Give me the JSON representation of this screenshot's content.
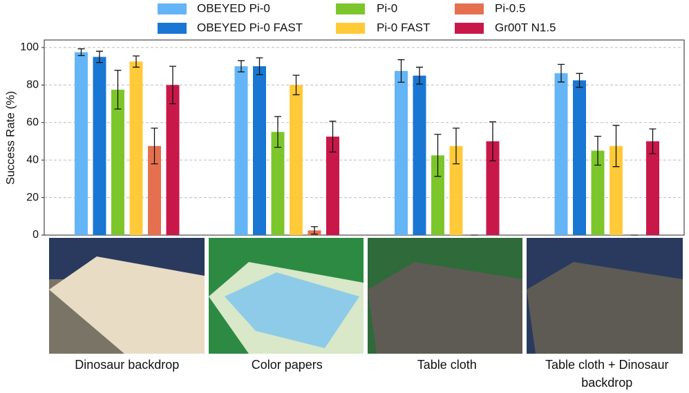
{
  "chart_data": {
    "type": "bar",
    "ylabel": "Success Rate (%)",
    "categories": [
      "Dinosaur backdrop",
      "Color papers",
      "Table cloth",
      "Table cloth + Dinosaur backdrop"
    ],
    "series": [
      {
        "name": "OBEYED Pi-0",
        "color": "#64b5f6",
        "values": [
          97.5,
          90,
          87.5,
          86.3
        ],
        "errors": [
          1.8,
          3,
          6,
          4.7
        ]
      },
      {
        "name": "OBEYED Pi-0 FAST",
        "color": "#1976d2",
        "values": [
          95,
          90,
          85,
          82.5
        ],
        "errors": [
          3,
          4.5,
          4.5,
          3.7
        ]
      },
      {
        "name": "Pi-0",
        "color": "#7cc62b",
        "values": [
          77.5,
          55,
          42.5,
          45
        ],
        "errors": [
          10.3,
          8.2,
          11.2,
          7.7
        ]
      },
      {
        "name": "Pi-0 FAST",
        "color": "#ffca3a",
        "values": [
          92.5,
          80,
          47.5,
          47.5
        ],
        "errors": [
          3,
          5.2,
          9.5,
          11
        ]
      },
      {
        "name": "Pi-0.5",
        "color": "#e5704f",
        "values": [
          47.5,
          2.5,
          0,
          0
        ],
        "errors": [
          9.5,
          2,
          0,
          0
        ]
      },
      {
        "name": "Gr00T N1.5",
        "color": "#c8184a",
        "values": [
          80,
          52.5,
          50,
          50
        ],
        "errors": [
          10,
          8.2,
          10.4,
          6.6
        ]
      }
    ],
    "ylim": [
      0,
      104
    ],
    "yticks": [
      0,
      20,
      40,
      60,
      80,
      100
    ],
    "grid": true,
    "legend": "top"
  }
}
